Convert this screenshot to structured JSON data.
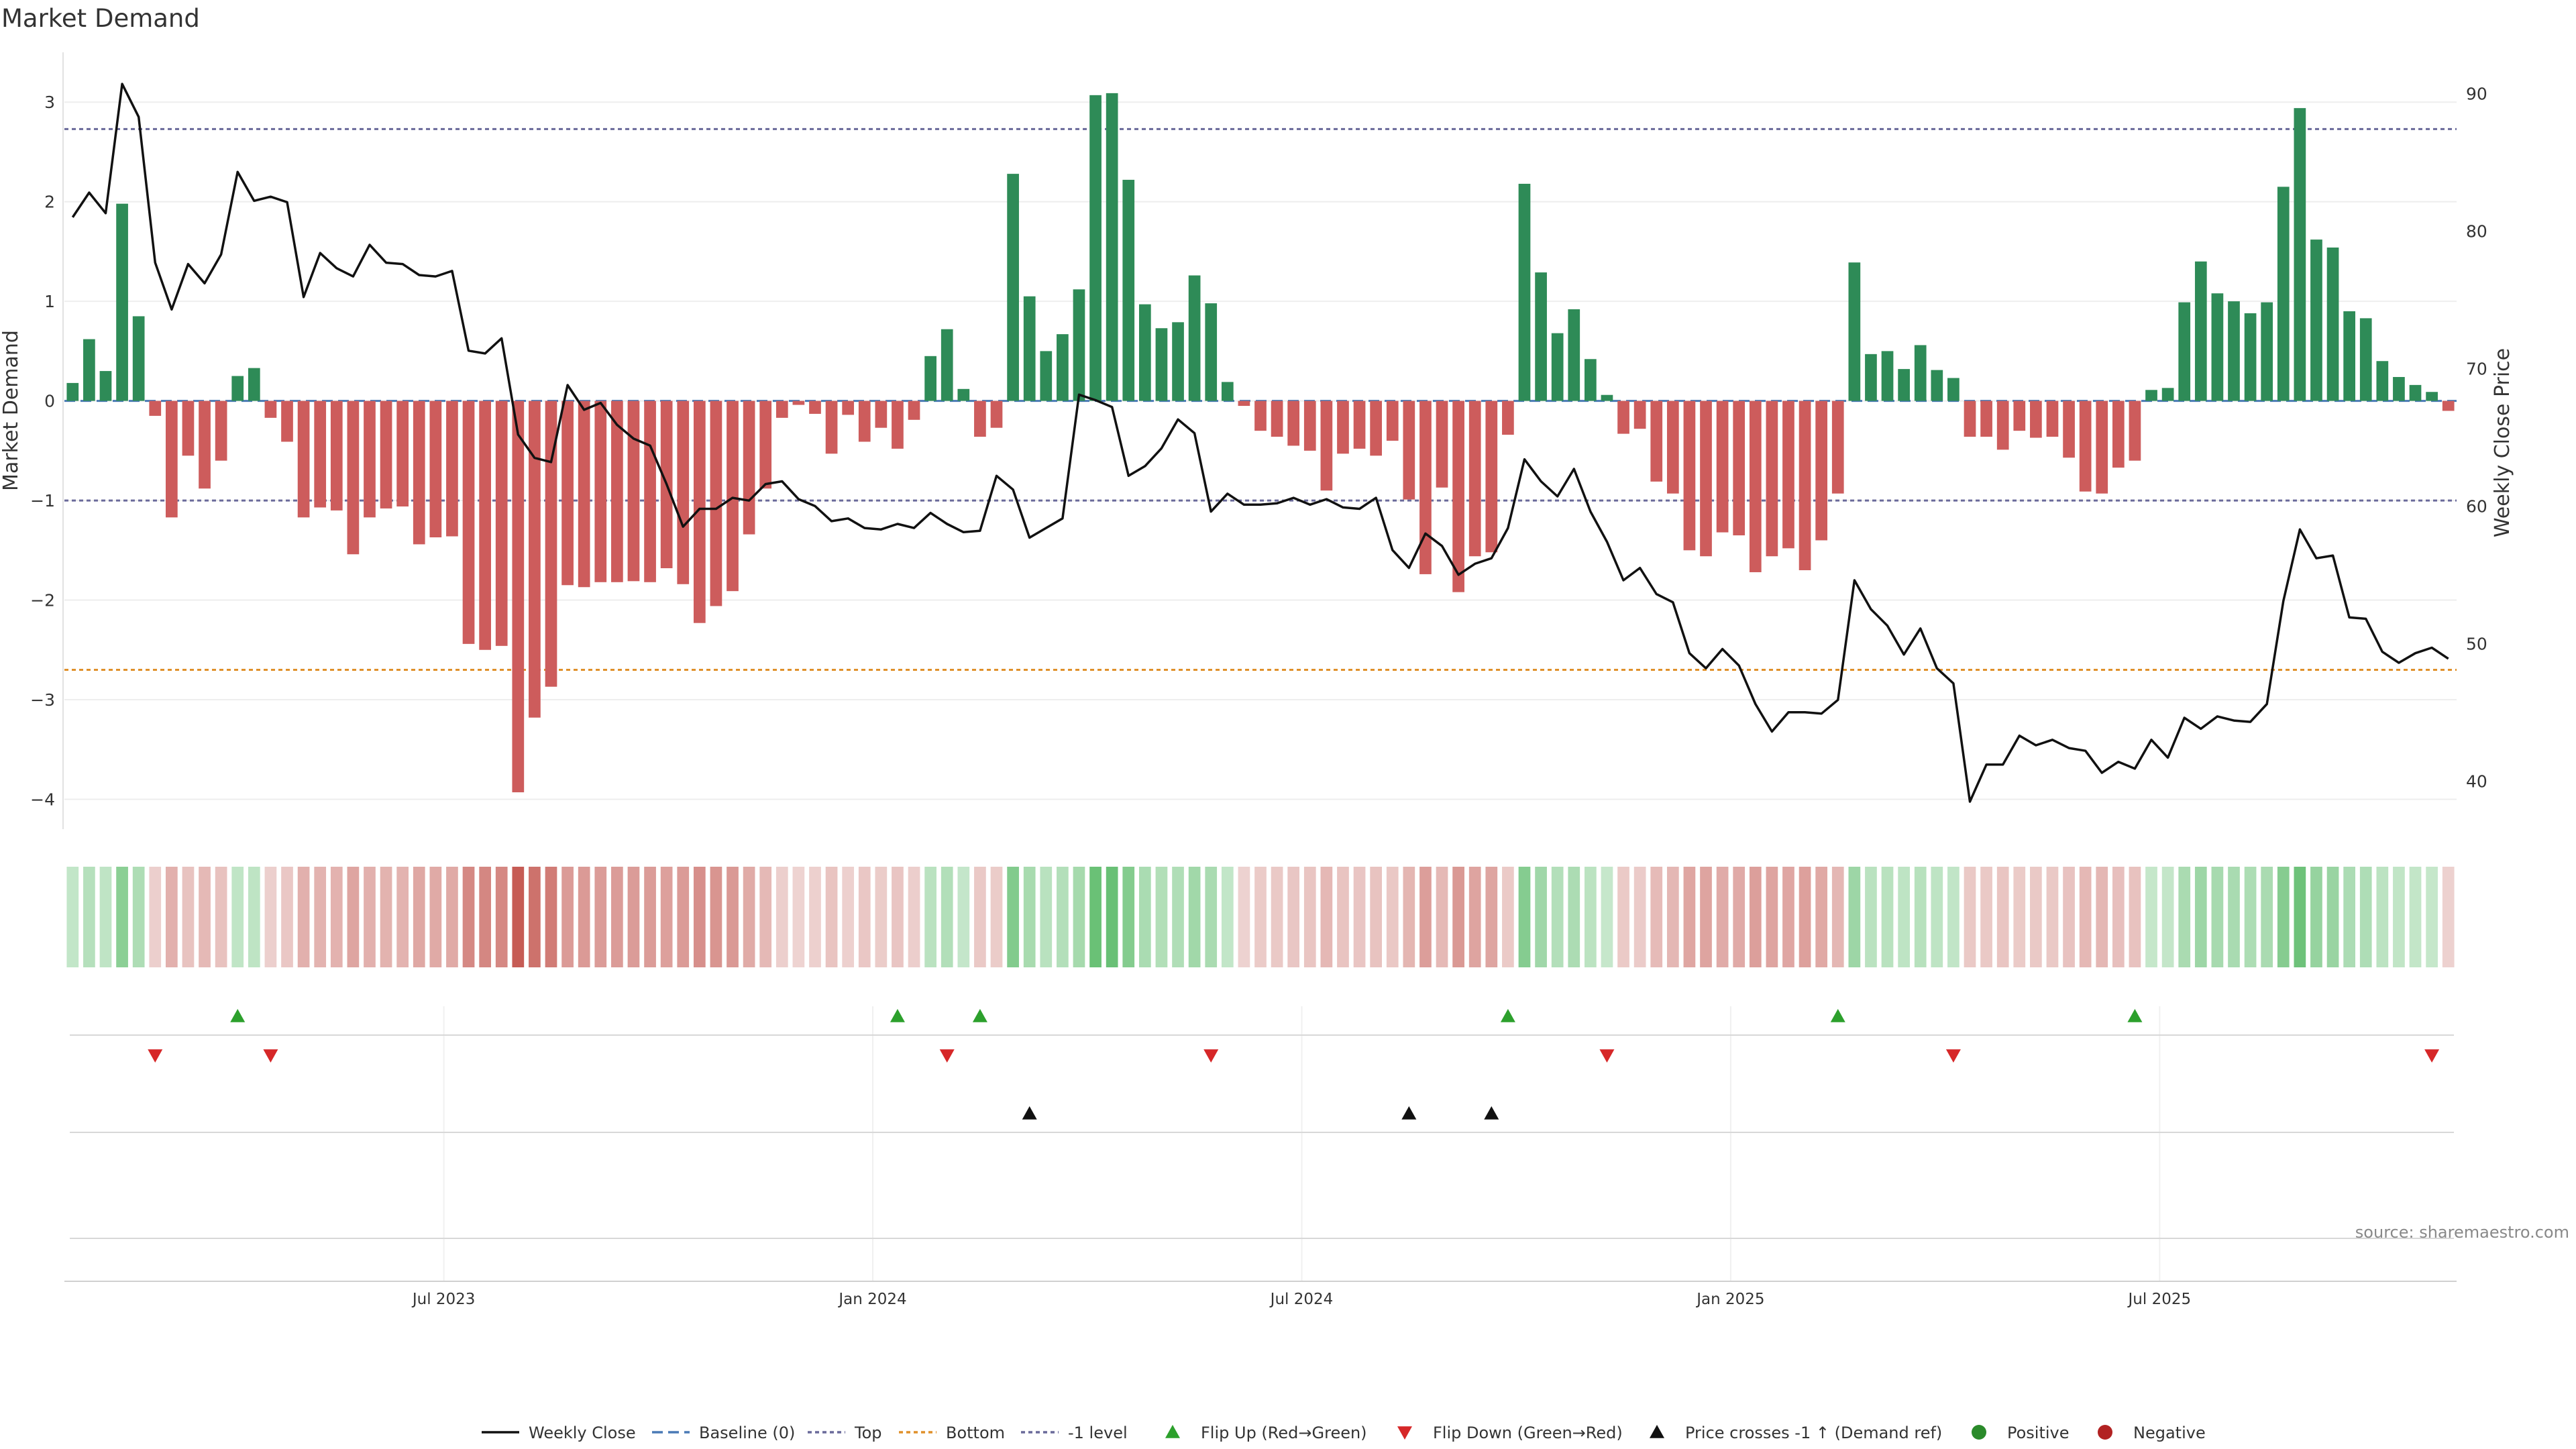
{
  "chart_data": {
    "type": "bar",
    "title": "Market Demand",
    "ylabel": "Market Demand",
    "y2label": "Weekly Close Price",
    "ylim": [
      -4.3,
      3.5
    ],
    "y2lim": [
      36.5,
      93
    ],
    "y_ticks": [
      "−4",
      "−3",
      "−2",
      "−1",
      "0",
      "1",
      "2",
      "3"
    ],
    "y_tick_values": [
      -4,
      -3,
      -2,
      -1,
      0,
      1,
      2,
      3
    ],
    "y2_ticks": [
      "40",
      "50",
      "60",
      "70",
      "80",
      "90"
    ],
    "y2_tick_values": [
      40,
      50,
      60,
      70,
      80,
      90
    ],
    "x_tick_labels": [
      "Jul 2023",
      "Jan 2024",
      "Jul 2024",
      "Jan 2025",
      "Jul 2025"
    ],
    "x_tick_week_index": [
      22,
      48,
      74,
      100,
      126
    ],
    "reference_lines": {
      "top": 2.73,
      "bottom": -2.7,
      "minus_one": -1,
      "baseline": 0
    },
    "demand": [
      0.18,
      0.62,
      0.3,
      1.98,
      0.85,
      -0.15,
      -1.17,
      -0.55,
      -0.88,
      -0.6,
      0.25,
      0.33,
      -0.17,
      -0.41,
      -1.17,
      -1.07,
      -1.1,
      -1.54,
      -1.17,
      -1.08,
      -1.06,
      -1.44,
      -1.37,
      -1.36,
      -2.44,
      -2.5,
      -2.46,
      -3.93,
      -3.18,
      -2.87,
      -1.85,
      -1.87,
      -1.82,
      -1.82,
      -1.81,
      -1.82,
      -1.68,
      -1.84,
      -2.23,
      -2.06,
      -1.91,
      -1.34,
      -0.88,
      -0.17,
      -0.04,
      -0.13,
      -0.53,
      -0.14,
      -0.41,
      -0.27,
      -0.48,
      -0.19,
      0.45,
      0.72,
      0.12,
      -0.36,
      -0.27,
      2.28,
      1.05,
      0.5,
      0.67,
      1.12,
      3.07,
      3.09,
      2.22,
      0.97,
      0.73,
      0.79,
      1.26,
      0.98,
      0.19,
      -0.05,
      -0.3,
      -0.36,
      -0.45,
      -0.5,
      -0.9,
      -0.53,
      -0.48,
      -0.55,
      -0.4,
      -0.99,
      -1.74,
      -0.87,
      -1.92,
      -1.56,
      -1.52,
      -0.34,
      2.18,
      1.29,
      0.68,
      0.92,
      0.42,
      0.06,
      -0.33,
      -0.28,
      -0.81,
      -0.93,
      -1.5,
      -1.56,
      -1.32,
      -1.35,
      -1.72,
      -1.56,
      -1.48,
      -1.7,
      -1.4,
      -0.93,
      1.39,
      0.47,
      0.5,
      0.32,
      0.56,
      0.31,
      0.23,
      -0.36,
      -0.36,
      -0.49,
      -0.3,
      -0.37,
      -0.36,
      -0.57,
      -0.91,
      -0.93,
      -0.67,
      -0.6,
      0.11,
      0.13,
      0.99,
      1.4,
      1.08,
      1.0,
      0.88,
      0.99,
      2.15,
      2.94,
      1.62,
      1.54,
      0.9,
      0.83,
      0.4,
      0.24,
      0.16,
      0.09,
      -0.1
    ],
    "close": [
      81,
      82.8,
      81.3,
      90.7,
      88.3,
      77.7,
      74.3,
      77.6,
      76.2,
      78.3,
      84.3,
      82.2,
      82.5,
      82.1,
      75.2,
      78.4,
      77.3,
      76.7,
      79,
      77.7,
      77.6,
      76.8,
      76.7,
      77.1,
      71.3,
      71.1,
      72.2,
      65.2,
      63.5,
      63.2,
      68.8,
      67,
      67.5,
      65.9,
      64.9,
      64.4,
      61.6,
      58.5,
      59.8,
      59.8,
      60.6,
      60.4,
      61.6,
      61.8,
      60.5,
      60,
      58.9,
      59.1,
      58.4,
      58.3,
      58.7,
      58.4,
      59.5,
      58.7,
      58.1,
      58.2,
      62.2,
      61.2,
      57.7,
      58.4,
      59.1,
      68.1,
      67.7,
      67.2,
      62.2,
      62.9,
      64.2,
      66.3,
      65.3,
      59.6,
      60.9,
      60.1,
      60.1,
      60.2,
      60.6,
      60.1,
      60.5,
      59.9,
      59.8,
      60.6,
      56.8,
      55.5,
      58,
      57.1,
      55,
      55.8,
      56.2,
      58.4,
      63.4,
      61.8,
      60.7,
      62.7,
      59.6,
      57.4,
      54.6,
      55.5,
      53.6,
      53,
      49.3,
      48.2,
      49.6,
      48.4,
      45.6,
      43.6,
      45,
      45,
      44.9,
      45.9,
      54.6,
      52.5,
      51.3,
      49.2,
      51.1,
      48.2,
      47.1,
      38.5,
      41.2,
      41.2,
      43.3,
      42.6,
      43,
      42.4,
      42.2,
      40.6,
      41.4,
      40.9,
      43,
      41.7,
      44.6,
      43.8,
      44.7,
      44.4,
      44.3,
      45.6,
      53.1,
      58.3,
      56.2,
      56.4,
      51.9,
      51.8,
      49.4,
      48.6,
      49.3,
      49.7,
      48.9
    ],
    "flip_up_weeks": [
      10,
      50,
      55,
      87,
      107,
      125
    ],
    "flip_down_weeks": [
      5,
      12,
      53,
      69,
      93,
      114,
      143
    ],
    "price_cross_weeks": [
      58,
      81,
      86
    ],
    "legend": [
      {
        "label": "Weekly Close",
        "kind": "line-solid",
        "color": "#111111"
      },
      {
        "label": "Baseline (0)",
        "kind": "line-dash",
        "color": "#4a7ab5"
      },
      {
        "label": "Top",
        "kind": "line-dot",
        "color": "#6a6a9a"
      },
      {
        "label": "Bottom",
        "kind": "line-dot",
        "color": "#e0902a"
      },
      {
        "label": "-1 level",
        "kind": "line-dot",
        "color": "#6a6a9a"
      },
      {
        "label": "Flip Up (Red→Green)",
        "kind": "tri-up",
        "color": "#2ca02c"
      },
      {
        "label": "Flip Down (Green→Red)",
        "kind": "tri-down",
        "color": "#d62728"
      },
      {
        "label": "Price crosses -1 ↑ (Demand ref)",
        "kind": "tri-up",
        "color": "#111111"
      },
      {
        "label": "Positive",
        "kind": "dot",
        "color": "#2a8a2a"
      },
      {
        "label": "Negative",
        "kind": "dot",
        "color": "#b22222"
      }
    ],
    "colors": {
      "positive": "#2e8b57",
      "negative": "#cd5c5c",
      "top": "#6a6a9a",
      "bottom": "#e0902a",
      "flip_up": "#2ca02c",
      "flip_down": "#d62728"
    }
  },
  "source": "source: sharemaestro.com"
}
